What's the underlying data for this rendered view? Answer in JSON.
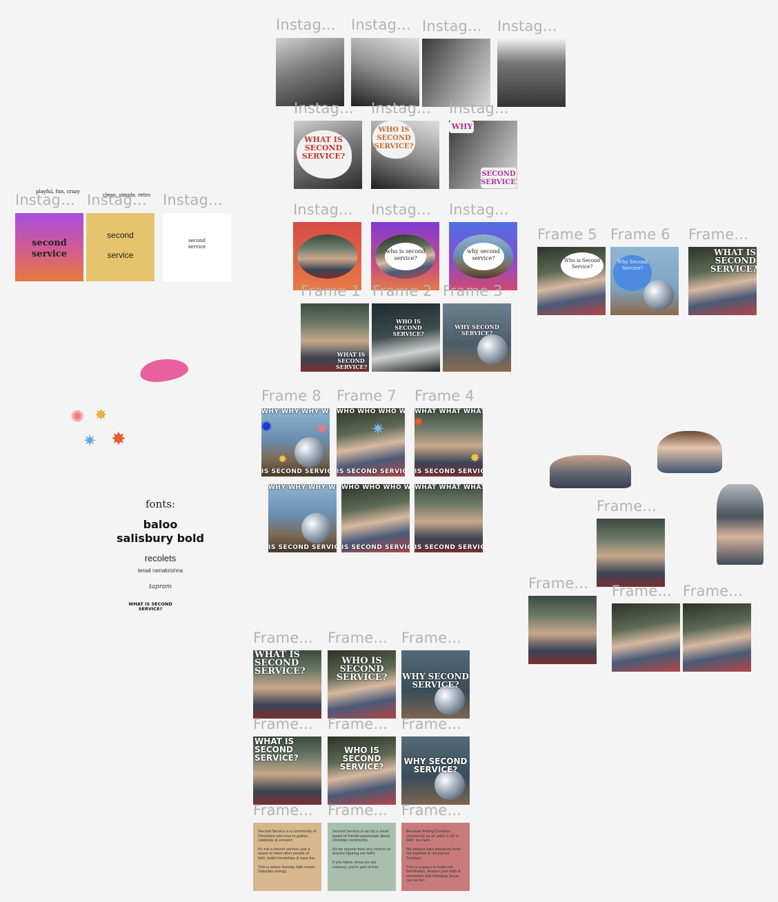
{
  "row1": {
    "labels": [
      "Instag...",
      "Instag...",
      "Instag...",
      "Instag..."
    ]
  },
  "row2": {
    "labels": [
      "Instag...",
      "Instag...",
      "Instag..."
    ],
    "texts": [
      "WHAT IS SECOND SERVICE?",
      "WHO IS SECOND SERVICE?",
      "WHY",
      "SECOND SERVICE?"
    ]
  },
  "row3": {
    "labels": [
      "Instag...",
      "Instag...",
      "Instag..."
    ],
    "texts": [
      "who is second service?",
      "why second service?"
    ]
  },
  "left_cards": {
    "labels": [
      "Instag...",
      "Instag...",
      "Instag..."
    ],
    "captions": [
      "playful, fun, crazy",
      "clean, simple, retro"
    ],
    "card1": "second service",
    "card2_a": "second",
    "card2_b": "service",
    "card3": "second service"
  },
  "frames_123": {
    "labels": [
      "Frame 1",
      "Frame 2",
      "Frame 3"
    ],
    "texts": [
      "WHAT IS SECOND SERVICE?",
      "WHO IS SECOND SERVICE?",
      "WHY SECOND SERVICE?"
    ]
  },
  "frames_56": {
    "labels": [
      "Frame 5",
      "Frame 6",
      "Frame..."
    ],
    "texts": [
      "Who is Second Service?",
      "Why Second Service?",
      "WHAT IS SECOND SERVICE?"
    ]
  },
  "frames_874": {
    "labels": [
      "Frame 8",
      "Frame 7",
      "Frame 4"
    ],
    "top_strips": [
      "WHY WHY WHY WHY",
      "WHO WHO WHO WHO",
      "WHAT WHAT WHAT"
    ],
    "bottom_strip": "IS SECOND SERVICE"
  },
  "fonts": {
    "heading": "fonts:",
    "f1": "baloo",
    "f2": "salisbury bold",
    "f3": "recolets",
    "f4": "tenali ramakrishna",
    "f5": "taprom",
    "f6": "WHAT IS SECOND SERVICE?"
  },
  "right_frames": {
    "label_a": "Frame...",
    "label_b": "Frame...",
    "label_c": "Frame...",
    "label_d": "Frame..."
  },
  "bottom": {
    "labels": [
      "Frame...",
      "Frame...",
      "Frame..."
    ],
    "set1": [
      "WHAT IS SECOND SERVICE?",
      "WHO IS SECOND SERVICE?",
      "WHY SECOND SERVICE?"
    ],
    "set2": [
      "WHAT IS SECOND SERVICE?",
      "WHO IS SECOND SERVICE?",
      "WHY SECOND SERVICE?"
    ],
    "cards": [
      {
        "p1": "Second Service is a community of Christians who love to gather, celebrate & connect.",
        "p2": "It's not a church service- just a space to meet other people of faith, build friendships & have fun.",
        "p3": "This is where Sunday faith meets Saturday energy."
      },
      {
        "p1": "Second Service is run by a small board of friends passionate about Christian community.",
        "p2": "It's for anyone from any church (or anyone figuring out faith).",
        "p3": "If you follow Jesus (or are curious), you're part of this."
      },
      {
        "p1": "Because finding Christian community as an adult in SF is WAY too hard.",
        "p2": "We believe faith should be lived out together & not just on Sundays.",
        "p3": "This is a space to build real friendships, deepen your faith & remember that following Jesus can be fun."
      }
    ]
  },
  "colors": {
    "canvas": "#f4f4f4",
    "label_gray": "#b3b3b3",
    "pink_blob": "#e9609e",
    "card_tan": "#d8b78c",
    "card_sage": "#a9bfae",
    "card_rose": "#c97b7b",
    "yellow_card": "#e5c46d"
  }
}
